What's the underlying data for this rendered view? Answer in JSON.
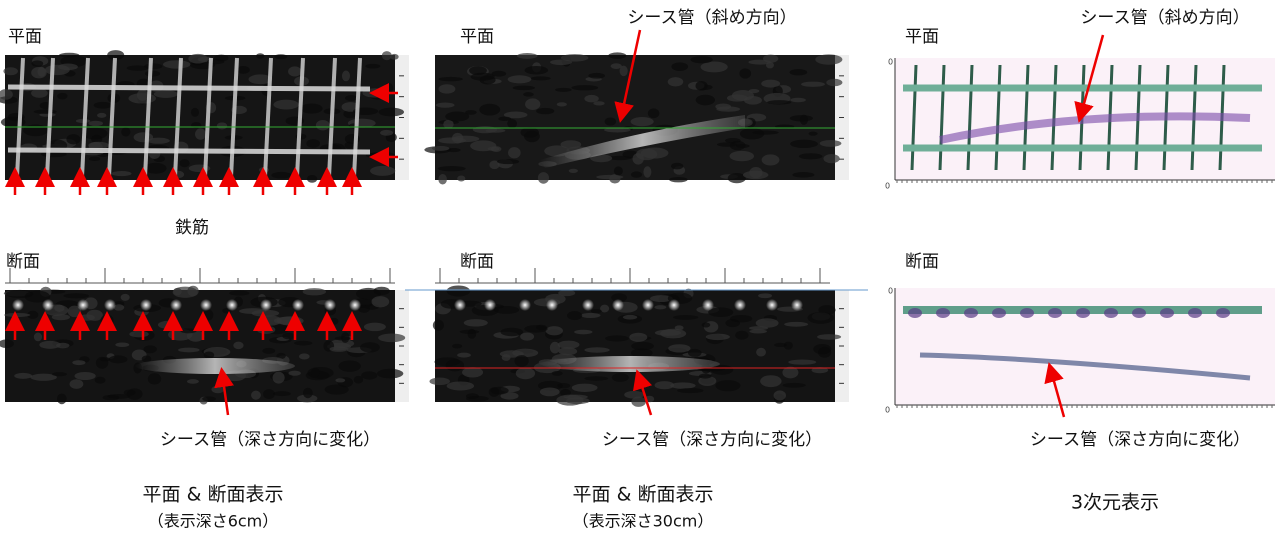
{
  "columns": [
    {
      "plan_label": "平面",
      "rebar_label": "鉄筋",
      "section_label": "断面",
      "section_annotation": "シース管（深さ方向に変化）",
      "caption": "平面 & 断面表示",
      "subcaption": "（表示深さ6cm）"
    },
    {
      "plan_label": "平面",
      "plan_annotation": "シース管（斜め方向）",
      "section_label": "断面",
      "section_annotation": "シース管（深さ方向に変化）",
      "caption": "平面 & 断面表示",
      "subcaption": "（表示深さ30cm）"
    },
    {
      "plan_label": "平面",
      "plan_annotation": "シース管（斜め方向）",
      "section_label": "断面",
      "section_annotation": "シース管（深さ方向に変化）",
      "caption": "3次元表示",
      "axis_origin_labels": [
        "0",
        "0",
        "0",
        "0"
      ]
    }
  ]
}
